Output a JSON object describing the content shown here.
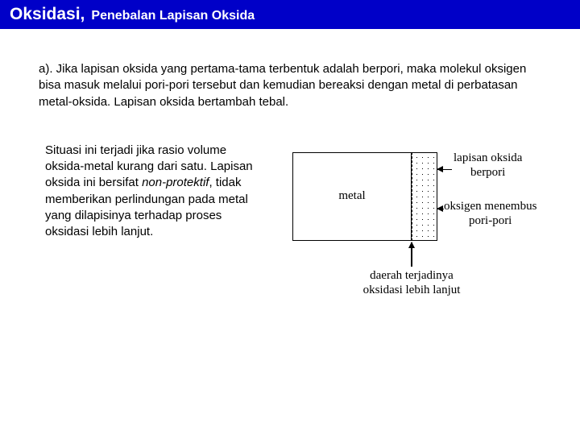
{
  "title": {
    "main": "Oksidasi,",
    "sub": "Penebalan Lapisan Oksida"
  },
  "paragraph": "a). Jika lapisan oksida yang pertama-tama terbentuk adalah berpori, maka molekul oksigen bisa masuk melalui pori-pori tersebut dan kemudian bereaksi dengan metal di perbatasan metal-oksida. Lapisan oksida bertambah tebal.",
  "left_text_1": "Situasi ini terjadi jika rasio volume oksida-metal kurang dari satu. Lapisan oksida ini bersifat ",
  "left_text_italic": "non-protektif",
  "left_text_2": ", tidak memberikan perlindungan pada metal yang dilapisinya terhadap proses oksidasi lebih lanjut.",
  "diagram": {
    "metal_label": "metal",
    "label_top_1": "lapisan oksida",
    "label_top_2": "berpori",
    "label_mid_1": "oksigen menembus",
    "label_mid_2": "pori-pori",
    "label_bottom_1": "daerah terjadinya",
    "label_bottom_2": "oksidasi lebih lanjut"
  },
  "colors": {
    "title_bg": "#0000c8",
    "title_fg": "#ffffff",
    "text": "#000000",
    "border": "#000000"
  }
}
